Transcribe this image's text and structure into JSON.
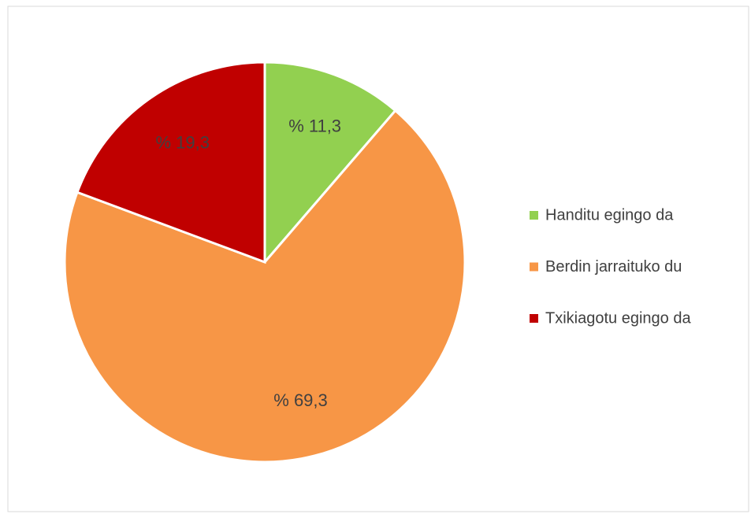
{
  "chart_data": {
    "type": "pie",
    "categories": [
      "Handitu egingo da",
      "Berdin jarraituko du",
      "Txikiagotu egingo da"
    ],
    "values": [
      11.3,
      69.3,
      19.3
    ],
    "value_labels": [
      "% 11,3",
      "% 69,3",
      "% 19,3"
    ],
    "colors": [
      "#92d050",
      "#f79646",
      "#c00000"
    ],
    "legend": "right"
  }
}
